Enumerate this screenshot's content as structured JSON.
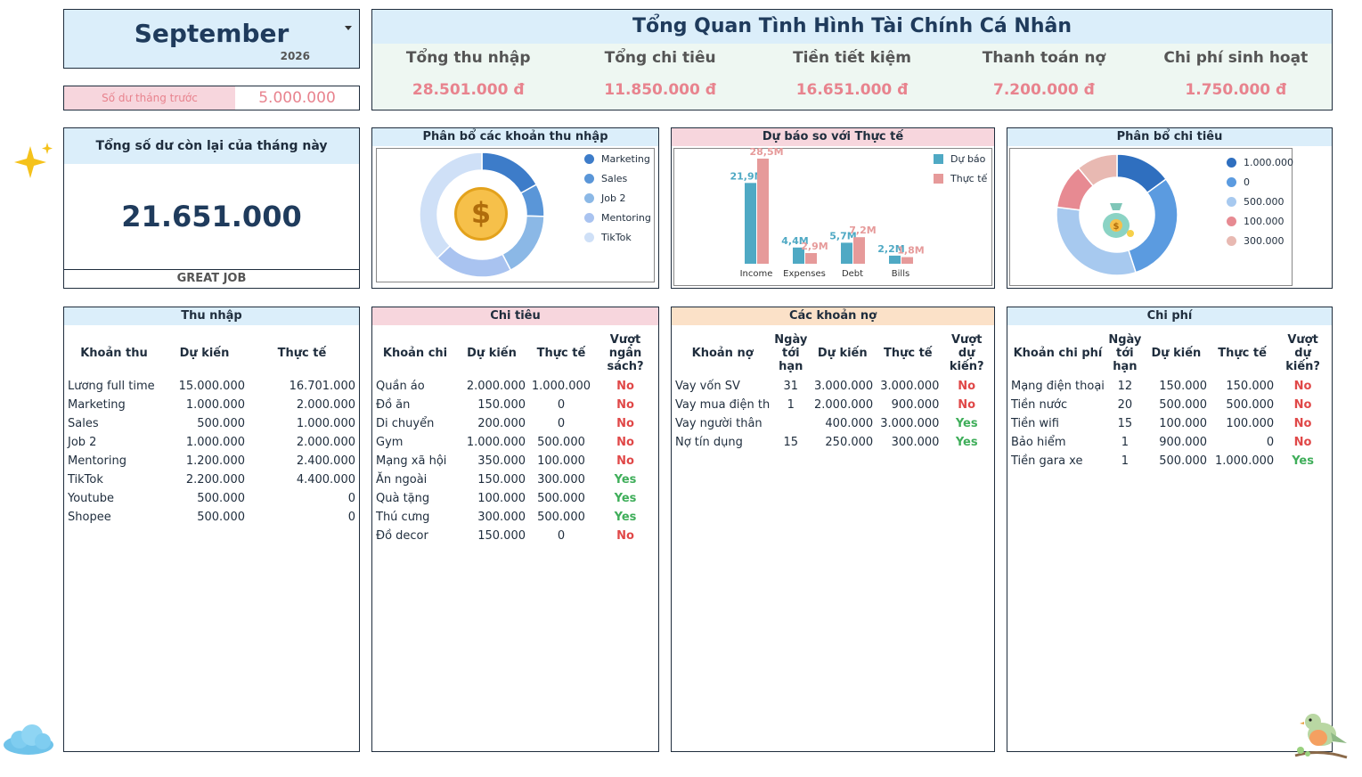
{
  "month": {
    "name": "September",
    "year": "2026"
  },
  "prev_balance": {
    "label": "Số dư tháng trước",
    "value": "5.000.000"
  },
  "overview": {
    "title": "Tổng Quan Tình Hình Tài Chính Cá Nhân",
    "kpis": [
      {
        "label": "Tổng thu nhập",
        "value": "28.501.000 đ"
      },
      {
        "label": "Tổng chi tiêu",
        "value": "11.850.000 đ"
      },
      {
        "label": "Tiền tiết kiệm",
        "value": "16.651.000 đ"
      },
      {
        "label": "Thanh toán nợ",
        "value": "7.200.000 đ"
      },
      {
        "label": "Chi phí sinh hoạt",
        "value": "1.750.000 đ"
      }
    ]
  },
  "balance": {
    "title": "Tổng số dư còn lại của tháng này",
    "value": "21.651.000",
    "footer": "GREAT JOB"
  },
  "colors": {
    "light_blue": "#dbeefa",
    "pink": "#f7d6dd",
    "peach": "#fbe1c8",
    "kpi_value": "#e8838e",
    "dark_text": "#1f2d3d",
    "no_red": "#e04848",
    "yes_green": "#3fae5a"
  },
  "income_chart": {
    "title": "Phân bổ các khoản thu nhập",
    "icon": "coin-dollar-icon",
    "legend": [
      {
        "name": "Marketing",
        "color": "#3d7cc9"
      },
      {
        "name": "Sales",
        "color": "#5a96d8"
      },
      {
        "name": "Job 2",
        "color": "#8bb8e6"
      },
      {
        "name": "Mentoring",
        "color": "#a9c3f0"
      },
      {
        "name": "TikTok",
        "color": "#cfe0f7"
      }
    ]
  },
  "forecast_chart": {
    "title": "Dự báo so với Thực tế",
    "legend": [
      {
        "name": "Dự báo",
        "color": "#4fa9c4"
      },
      {
        "name": "Thực tế",
        "color": "#e69a9a"
      }
    ]
  },
  "expense_chart": {
    "title": "Phân bổ chi tiêu",
    "icon": "money-bag-icon",
    "legend": [
      {
        "name": "1.000.000",
        "color": "#2f6fbf"
      },
      {
        "name": "0",
        "color": "#5b9be0"
      },
      {
        "name": "500.000",
        "color": "#a7c9ef"
      },
      {
        "name": "100.000",
        "color": "#e78a92"
      },
      {
        "name": "300.000",
        "color": "#e8b9b2"
      }
    ]
  },
  "chart_data": [
    {
      "type": "pie",
      "title": "Phân bổ các khoản thu nhập",
      "categories": [
        "Marketing",
        "Sales",
        "Job 2",
        "Mentoring",
        "TikTok"
      ],
      "values": [
        2000000,
        1000000,
        2000000,
        2400000,
        4400000
      ],
      "style": "donut"
    },
    {
      "type": "bar",
      "title": "Dự báo so với Thực tế",
      "categories": [
        "Income",
        "Expenses",
        "Debt",
        "Bills"
      ],
      "series": [
        {
          "name": "Dự báo",
          "values": [
            21.9,
            4.4,
            5.7,
            2.2
          ],
          "labels": [
            "21,9M",
            "4,4M",
            "5,7M",
            "2,2M"
          ]
        },
        {
          "name": "Thực tế",
          "values": [
            28.5,
            2.9,
            7.2,
            1.8
          ],
          "labels": [
            "28,5M",
            "2,9M",
            "7,2M",
            "1,8M"
          ]
        }
      ],
      "ylim": [
        0,
        28.5
      ]
    },
    {
      "type": "pie",
      "title": "Phân bổ chi tiêu",
      "categories": [
        "1.000.000",
        "0",
        "500.000",
        "100.000",
        "300.000"
      ],
      "values": [
        0.15,
        0.3,
        0.32,
        0.12,
        0.11
      ],
      "style": "donut"
    }
  ],
  "income_table": {
    "title": "Thu nhập",
    "headers": [
      "Khoản thu",
      "Dự kiến",
      "Thực tế"
    ],
    "rows": [
      [
        "Lương full time",
        "15.000.000",
        "16.701.000"
      ],
      [
        "Marketing",
        "1.000.000",
        "2.000.000"
      ],
      [
        "Sales",
        "500.000",
        "1.000.000"
      ],
      [
        "Job 2",
        "1.000.000",
        "2.000.000"
      ],
      [
        "Mentoring",
        "1.200.000",
        "2.400.000"
      ],
      [
        "TikTok",
        "2.200.000",
        "4.400.000"
      ],
      [
        "Youtube",
        "500.000",
        "0"
      ],
      [
        "Shopee",
        "500.000",
        "0"
      ]
    ]
  },
  "spending_table": {
    "title": "Chi tiêu",
    "headers": [
      "Khoản chi",
      "Dự kiến",
      "Thực tế",
      "Vượt ngân sách?"
    ],
    "rows": [
      [
        "Quần áo",
        "2.000.000",
        "1.000.000",
        "No"
      ],
      [
        "Đồ ăn",
        "150.000",
        "0",
        "No"
      ],
      [
        "Di chuyển",
        "200.000",
        "0",
        "No"
      ],
      [
        "Gym",
        "1.000.000",
        "500.000",
        "No"
      ],
      [
        "Mạng xã hội",
        "350.000",
        "100.000",
        "No"
      ],
      [
        "Ăn ngoài",
        "150.000",
        "300.000",
        "Yes"
      ],
      [
        "Quà tặng",
        "100.000",
        "500.000",
        "Yes"
      ],
      [
        "Thú cưng",
        "300.000",
        "500.000",
        "Yes"
      ],
      [
        "Đồ decor",
        "150.000",
        "0",
        "No"
      ]
    ]
  },
  "debt_table": {
    "title": "Các khoản nợ",
    "headers": [
      "Khoản nợ",
      "Ngày tới hạn",
      "Dự kiến",
      "Thực tế",
      "Vượt dự kiến?"
    ],
    "rows": [
      [
        "Vay vốn SV",
        "31",
        "3.000.000",
        "3.000.000",
        "No"
      ],
      [
        "Vay mua điện th",
        "1",
        "2.000.000",
        "900.000",
        "No"
      ],
      [
        "Vay người thân",
        "",
        "400.000",
        "3.000.000",
        "Yes"
      ],
      [
        "Nợ tín dụng",
        "15",
        "250.000",
        "300.000",
        "Yes"
      ]
    ]
  },
  "cost_table": {
    "title": "Chi phí",
    "headers": [
      "Khoản chi phí",
      "Ngày tới hạn",
      "Dự kiến",
      "Thực tế",
      "Vượt dự kiến?"
    ],
    "rows": [
      [
        "Mạng điện thoại",
        "12",
        "150.000",
        "150.000",
        "No"
      ],
      [
        "Tiền nước",
        "20",
        "500.000",
        "500.000",
        "No"
      ],
      [
        "Tiền wifi",
        "15",
        "100.000",
        "100.000",
        "No"
      ],
      [
        "Bảo hiểm",
        "1",
        "900.000",
        "0",
        "No"
      ],
      [
        "Tiền gara xe",
        "1",
        "500.000",
        "1.000.000",
        "Yes"
      ]
    ]
  }
}
